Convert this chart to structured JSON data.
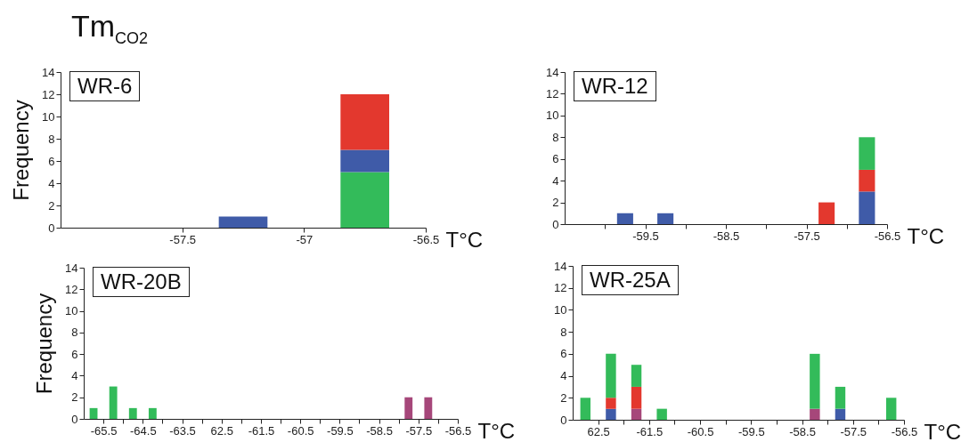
{
  "chart_data": [
    {
      "type": "bar",
      "title": "Tm$_{CO2}$",
      "ylabel": "Frequency",
      "xlabel": "T°C",
      "annotations": [
        "WR-6"
      ],
      "stacked": true,
      "x": [
        -57.25,
        -56.75
      ],
      "series": [
        {
          "color": "#33bb5a",
          "values": [
            null,
            5
          ]
        },
        {
          "color": "#3f5ba8",
          "values": [
            1,
            2
          ]
        },
        {
          "color": "#e3382e",
          "values": [
            null,
            5
          ]
        }
      ],
      "xlim": [
        -58,
        -56.5
      ],
      "xticks": [
        -57.5,
        -57,
        -56.5
      ],
      "ylim": [
        0,
        14
      ],
      "yticks": [
        0,
        2,
        4,
        6,
        8,
        10,
        12,
        14
      ]
    },
    {
      "type": "bar",
      "xlabel": "T°C",
      "annotations": [
        "WR-12"
      ],
      "stacked": true,
      "x": [
        -59.75,
        -59.25,
        -57.25,
        -56.75
      ],
      "series": [
        {
          "color": "#3f5ba8",
          "values": [
            1,
            1,
            null,
            3
          ]
        },
        {
          "color": "#e3382e",
          "values": [
            null,
            null,
            2,
            2
          ]
        },
        {
          "color": "#33bb5a",
          "values": [
            null,
            null,
            null,
            3
          ]
        }
      ],
      "xlim": [
        -60.5,
        -56.5
      ],
      "xticks": [
        {
          "value": -60,
          "label": null
        },
        -59.5,
        {
          "value": -59,
          "label": null
        },
        -58.5,
        {
          "value": -58,
          "label": null
        },
        -57.5,
        {
          "value": -57,
          "label": null
        },
        -56.5
      ],
      "ylim": [
        0,
        14
      ],
      "yticks": [
        0,
        2,
        4,
        6,
        8,
        10,
        12,
        14
      ]
    },
    {
      "type": "bar",
      "ylabel": "Frequency",
      "xlabel": "T°C",
      "annotations": [
        "WR-20B"
      ],
      "stacked": true,
      "x": [
        -65.75,
        -65.25,
        -64.75,
        -64.25,
        -57.75,
        -57.25
      ],
      "series": [
        {
          "color": "#33bb5a",
          "values": [
            1,
            3,
            1,
            1,
            null,
            null
          ]
        },
        {
          "color": "#a6477a",
          "values": [
            null,
            null,
            null,
            null,
            2,
            2
          ]
        }
      ],
      "xlim": [
        -66,
        -56.5
      ],
      "xticks": [
        -65.5,
        {
          "value": -65,
          "label": null
        },
        -64.5,
        {
          "value": -64,
          "label": null
        },
        -63.5,
        {
          "value": -63,
          "label": null
        },
        {
          "value": -62.5,
          "label": "62.5"
        },
        {
          "value": -62,
          "label": null
        },
        -61.5,
        {
          "value": -61,
          "label": null
        },
        -60.5,
        {
          "value": -60,
          "label": null
        },
        -59.5,
        {
          "value": -59,
          "label": null
        },
        -58.5,
        {
          "value": -58,
          "label": null
        },
        -57.5,
        {
          "value": -57,
          "label": null
        },
        -56.5
      ],
      "ylim": [
        0,
        14
      ],
      "yticks": [
        0,
        2,
        4,
        6,
        8,
        10,
        12,
        14
      ]
    },
    {
      "type": "bar",
      "xlabel": "T°C",
      "annotations": [
        "WR-25A"
      ],
      "stacked": true,
      "x": [
        -62.75,
        -62.25,
        -61.75,
        -61.25,
        -58.25,
        -57.75,
        -56.75
      ],
      "series": [
        {
          "color": "#3f5ba8",
          "values": [
            null,
            1,
            null,
            null,
            null,
            1,
            null
          ]
        },
        {
          "color": "#a6477a",
          "values": [
            null,
            null,
            1,
            null,
            1,
            null,
            null
          ]
        },
        {
          "color": "#e3382e",
          "values": [
            null,
            1,
            2,
            null,
            null,
            null,
            null
          ]
        },
        {
          "color": "#33bb5a",
          "values": [
            2,
            4,
            2,
            1,
            5,
            2,
            2
          ]
        }
      ],
      "xlim": [
        -63,
        -56.5
      ],
      "xticks": [
        {
          "value": -62.5,
          "label": "62.5"
        },
        {
          "value": -62,
          "label": null
        },
        -61.5,
        {
          "value": -61,
          "label": null
        },
        -60.5,
        {
          "value": -60,
          "label": null
        },
        -59.5,
        {
          "value": -59,
          "label": null
        },
        -58.5,
        {
          "value": -58,
          "label": null
        },
        -57.5,
        {
          "value": -57,
          "label": null
        },
        -56.5
      ],
      "ylim": [
        0,
        14
      ],
      "yticks": [
        0,
        2,
        4,
        6,
        8,
        10,
        12,
        14
      ]
    }
  ]
}
